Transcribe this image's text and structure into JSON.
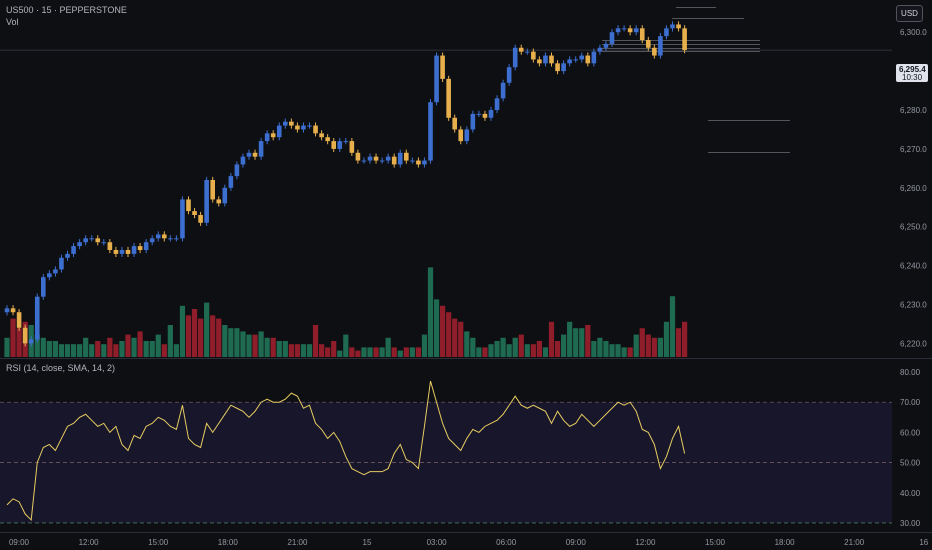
{
  "header": {
    "symbol_line": "US500 · 15 · PEPPERSTONE",
    "volume_label": "Vol",
    "rsi_label": "RSI (14, close, SMA, 14, 2)",
    "currency_button": "USD"
  },
  "colors": {
    "background": "#0e0f13",
    "bull_candle": "#3d6fd0",
    "bear_candle": "#e8b04d",
    "volume_up": "#1f6b52",
    "volume_down": "#8f1e2a",
    "rsi_line": "#e6cc60",
    "rsi_band": "#1a1830",
    "grid_text": "#9598a1"
  },
  "chart_data": [
    {
      "type": "candlestick",
      "y_ticks": [
        "6,300.0",
        "6,290.0",
        "6,280.0",
        "6,270.0",
        "6,260.0",
        "6,250.0",
        "6,240.0",
        "6,230.0",
        "6,220.0"
      ],
      "x_ticks": [
        "09:00",
        "12:00",
        "15:00",
        "18:00",
        "21:00",
        "15",
        "03:00",
        "06:00",
        "09:00",
        "12:00",
        "15:00",
        "18:00",
        "21:00",
        "16"
      ],
      "ylim": [
        6217,
        6307
      ],
      "last_price": "6,295.4",
      "countdown": "10:30",
      "close": [
        6229,
        6228,
        6224,
        6220,
        6221,
        6232,
        6237,
        6238,
        6239,
        6242,
        6243,
        6245,
        6246,
        6247,
        6247,
        6246,
        6246,
        6244,
        6243,
        6244,
        6243,
        6245,
        6244,
        6246,
        6247,
        6248,
        6247,
        6247,
        6247,
        6257,
        6254,
        6253,
        6251,
        6262,
        6257,
        6256,
        6260,
        6263,
        6266,
        6268,
        6269,
        6268,
        6272,
        6274,
        6273,
        6276,
        6277,
        6276,
        6275,
        6276,
        6276,
        6274,
        6273,
        6272,
        6270,
        6272,
        6272,
        6269,
        6267,
        6267,
        6268,
        6267,
        6267,
        6268,
        6266,
        6269,
        6267,
        6267,
        6266,
        6267,
        6282,
        6294,
        6288,
        6278,
        6275,
        6272,
        6275,
        6279,
        6279,
        6278,
        6280,
        6283,
        6287,
        6291,
        6296,
        6295,
        6295,
        6293,
        6292,
        6294,
        6292,
        6290,
        6292,
        6293,
        6293,
        6294,
        6292,
        6295,
        6296,
        6297,
        6300,
        6301,
        6301,
        6300,
        6301,
        6298,
        6296,
        6294,
        6299,
        6301,
        6302,
        6301,
        6295.4
      ],
      "volume": [
        6,
        12,
        9,
        11,
        10,
        7,
        6,
        5,
        5,
        4,
        4,
        4,
        4,
        6,
        4,
        5,
        4,
        6,
        4,
        5,
        7,
        6,
        8,
        5,
        5,
        7,
        4,
        10,
        4,
        16,
        13,
        15,
        12,
        17,
        13,
        12,
        10,
        9,
        9,
        8,
        7,
        7,
        8,
        6,
        6,
        5,
        5,
        4,
        4,
        4,
        4,
        10,
        4,
        3,
        5,
        2,
        7,
        3,
        2,
        3,
        3,
        3,
        3,
        6,
        3,
        2,
        3,
        3,
        3,
        7,
        28,
        18,
        16,
        14,
        12,
        11,
        8,
        6,
        3,
        3,
        4,
        5,
        6,
        4,
        6,
        7,
        4,
        4,
        5,
        3,
        11,
        5,
        7,
        11,
        9,
        9,
        10,
        5,
        6,
        5,
        4,
        4,
        3,
        3,
        7,
        9,
        7,
        6,
        6,
        11,
        19,
        9,
        11
      ]
    },
    {
      "type": "line",
      "name": "RSI",
      "ylim": [
        27,
        82
      ],
      "y_ticks": [
        "80.00",
        "70.00",
        "60.00",
        "50.00",
        "40.00",
        "30.00"
      ],
      "bands": [
        70,
        50,
        30
      ],
      "values": [
        36,
        38,
        37,
        33,
        31,
        50,
        55,
        56,
        54,
        58,
        62,
        63,
        65,
        66,
        64,
        62,
        63,
        60,
        62,
        56,
        54,
        59,
        58,
        62,
        63,
        65,
        64,
        62,
        61,
        69,
        58,
        56,
        55,
        63,
        60,
        63,
        66,
        69,
        68,
        67,
        65,
        67,
        70,
        71,
        70,
        70,
        71,
        73,
        72,
        68,
        69,
        63,
        61,
        58,
        60,
        57,
        52,
        48,
        47,
        46,
        47,
        47,
        47,
        48,
        53,
        56,
        51,
        50,
        48,
        62,
        77,
        70,
        63,
        58,
        56,
        54,
        58,
        61,
        60,
        62,
        63,
        64,
        66,
        69,
        72,
        69,
        68,
        69,
        68,
        67,
        63,
        67,
        64,
        62,
        63,
        66,
        64,
        62,
        64,
        66,
        68,
        70,
        69,
        70,
        67,
        61,
        60,
        56,
        48,
        52,
        58,
        62,
        53
      ]
    }
  ]
}
